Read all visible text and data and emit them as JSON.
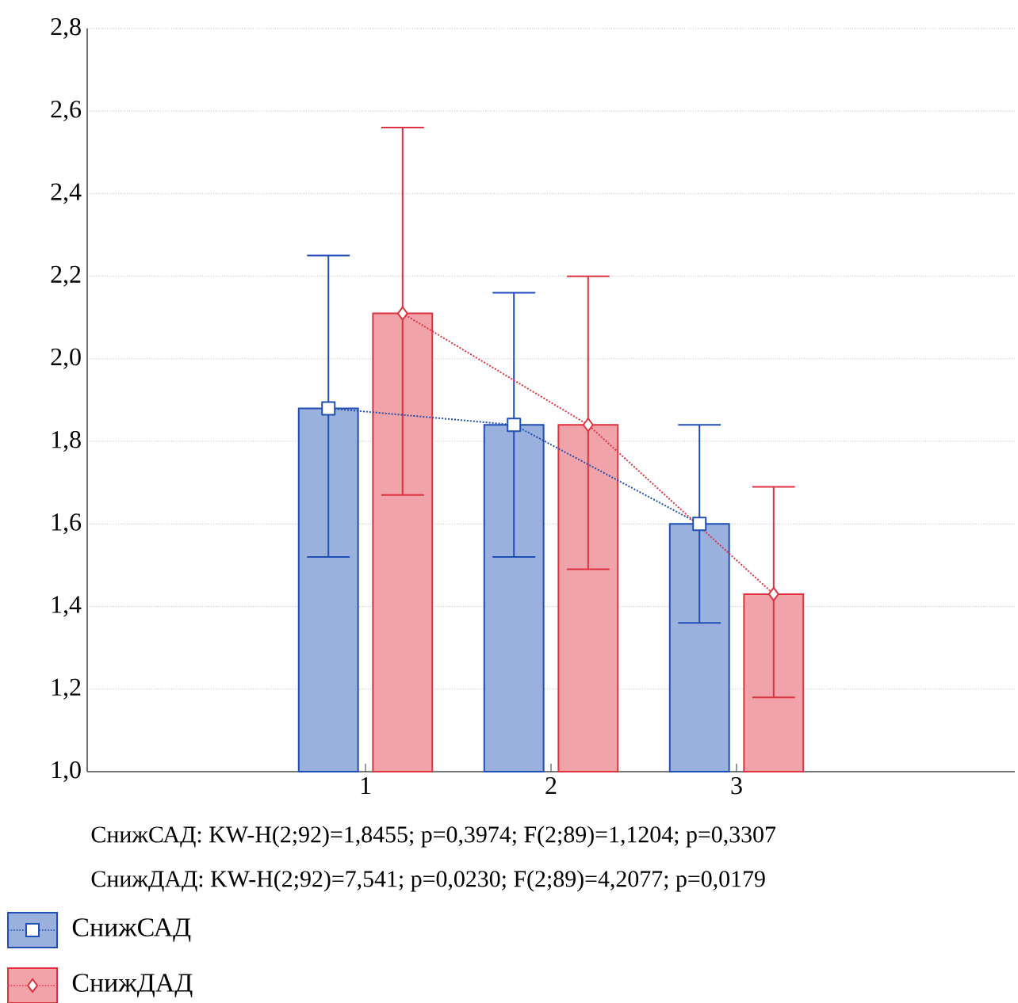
{
  "chart_data": {
    "type": "bar",
    "categories": [
      "1",
      "2",
      "3"
    ],
    "series": [
      {
        "name": "СнижСАД",
        "color": "#1f4fb4",
        "values": [
          1.88,
          1.84,
          1.6
        ],
        "errors": [
          [
            1.52,
            2.25
          ],
          [
            1.52,
            2.16
          ],
          [
            1.36,
            1.84
          ]
        ]
      },
      {
        "name": "СнижДАД",
        "color": "#dd3340",
        "values": [
          2.11,
          1.84,
          1.43
        ],
        "errors": [
          [
            1.67,
            2.56
          ],
          [
            1.49,
            2.2
          ],
          [
            1.18,
            1.69
          ]
        ]
      },
      {
        "type": "line",
        "color": "#1f4fb4",
        "marker": "square",
        "line_style": "dotted",
        "values": [
          1.88,
          1.84,
          1.6
        ]
      },
      {
        "type": "line",
        "color": "#dd3340",
        "marker": "diamond",
        "line_style": "dotted",
        "values": [
          2.11,
          1.84,
          1.43
        ]
      }
    ],
    "ylim": [
      1.0,
      2.8
    ],
    "yticks": [
      {
        "value": 1.0,
        "label": "1,0"
      },
      {
        "value": 1.2,
        "label": "1,2"
      },
      {
        "value": 1.4,
        "label": "1,4"
      },
      {
        "value": 1.6,
        "label": "1,6"
      },
      {
        "value": 1.8,
        "label": "1,8"
      },
      {
        "value": 2.0,
        "label": "2,0"
      },
      {
        "value": 2.2,
        "label": "2,2"
      },
      {
        "value": 2.4,
        "label": "2,4"
      },
      {
        "value": 2.6,
        "label": "2,6"
      },
      {
        "value": 2.8,
        "label": "2,8"
      }
    ],
    "grid": "y",
    "legend": "bottom",
    "annotations": [
      "СнижСАД: KW-H(2;92)=1,8455; p=0,3974; F(2;89)=1,1204; p=0,3307",
      "СнижДАД: KW-H(2;92)=7,541; p=0,0230; F(2;89)=4,2077; p=0,0179"
    ]
  }
}
